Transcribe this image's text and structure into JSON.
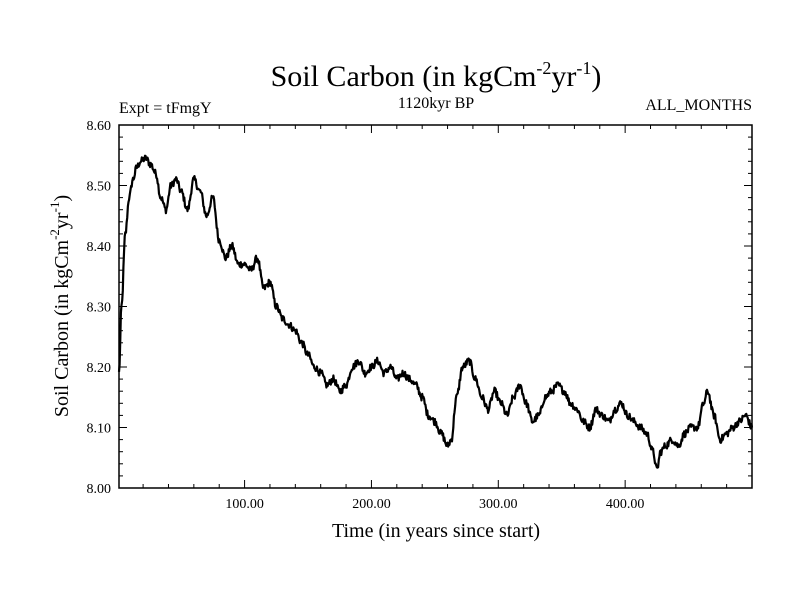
{
  "chart_data": {
    "type": "line",
    "title_main": "Soil Carbon (in kgCm",
    "title_sup1": "-2",
    "title_mid": "yr",
    "title_sup2": "-1",
    "title_end": ")",
    "subtitle_left": "Expt = tFmgY",
    "subtitle_center": "1120kyr BP",
    "subtitle_right": "ALL_MONTHS",
    "xlabel": "Time (in years since start)",
    "ylabel_main": "Soil Carbon (in kgCm",
    "ylabel_sup1": "-2",
    "ylabel_mid": "yr",
    "ylabel_sup2": "-1",
    "ylabel_end": ")",
    "xlim": [
      1,
      500
    ],
    "ylim": [
      8.0,
      8.6
    ],
    "xticks": [
      100,
      200,
      300,
      400
    ],
    "xtick_labels": [
      "100.00",
      "200.00",
      "300.00",
      "400.00"
    ],
    "yticks": [
      8.0,
      8.1,
      8.2,
      8.3,
      8.4,
      8.5,
      8.6
    ],
    "ytick_labels": [
      "8.00",
      "8.10",
      "8.20",
      "8.30",
      "8.40",
      "8.50",
      "8.60"
    ],
    "series": [
      {
        "name": "Soil Carbon",
        "x": [
          1,
          3,
          6,
          9,
          12,
          15,
          18,
          22,
          26,
          30,
          34,
          38,
          42,
          46,
          50,
          55,
          60,
          65,
          70,
          75,
          80,
          85,
          90,
          95,
          100,
          105,
          110,
          115,
          120,
          125,
          130,
          135,
          140,
          145,
          150,
          155,
          160,
          165,
          170,
          175,
          180,
          185,
          190,
          195,
          200,
          205,
          210,
          215,
          220,
          225,
          230,
          235,
          240,
          245,
          250,
          255,
          260,
          263,
          267,
          272,
          277,
          282,
          287,
          292,
          297,
          302,
          307,
          312,
          317,
          322,
          327,
          332,
          337,
          342,
          347,
          352,
          357,
          362,
          367,
          372,
          377,
          382,
          387,
          392,
          397,
          402,
          407,
          412,
          417,
          422,
          425,
          428,
          432,
          437,
          442,
          447,
          452,
          457,
          462,
          465,
          470,
          475,
          480,
          485,
          490,
          495,
          500
        ],
        "y": [
          8.19,
          8.3,
          8.42,
          8.48,
          8.51,
          8.53,
          8.54,
          8.545,
          8.535,
          8.52,
          8.48,
          8.46,
          8.5,
          8.51,
          8.49,
          8.46,
          8.51,
          8.49,
          8.45,
          8.48,
          8.41,
          8.38,
          8.4,
          8.37,
          8.37,
          8.36,
          8.38,
          8.33,
          8.34,
          8.3,
          8.28,
          8.27,
          8.26,
          8.24,
          8.22,
          8.2,
          8.19,
          8.17,
          8.18,
          8.16,
          8.17,
          8.2,
          8.21,
          8.19,
          8.2,
          8.21,
          8.19,
          8.2,
          8.18,
          8.19,
          8.18,
          8.17,
          8.15,
          8.12,
          8.11,
          8.09,
          8.07,
          8.08,
          8.15,
          8.2,
          8.21,
          8.18,
          8.15,
          8.13,
          8.16,
          8.14,
          8.12,
          8.15,
          8.17,
          8.14,
          8.11,
          8.12,
          8.15,
          8.16,
          8.17,
          8.16,
          8.14,
          8.13,
          8.11,
          8.1,
          8.13,
          8.12,
          8.11,
          8.13,
          8.14,
          8.12,
          8.11,
          8.1,
          8.09,
          8.06,
          8.03,
          8.06,
          8.07,
          8.08,
          8.07,
          8.09,
          8.1,
          8.1,
          8.14,
          8.16,
          8.12,
          8.08,
          8.09,
          8.1,
          8.11,
          8.12,
          8.1
        ]
      }
    ]
  }
}
